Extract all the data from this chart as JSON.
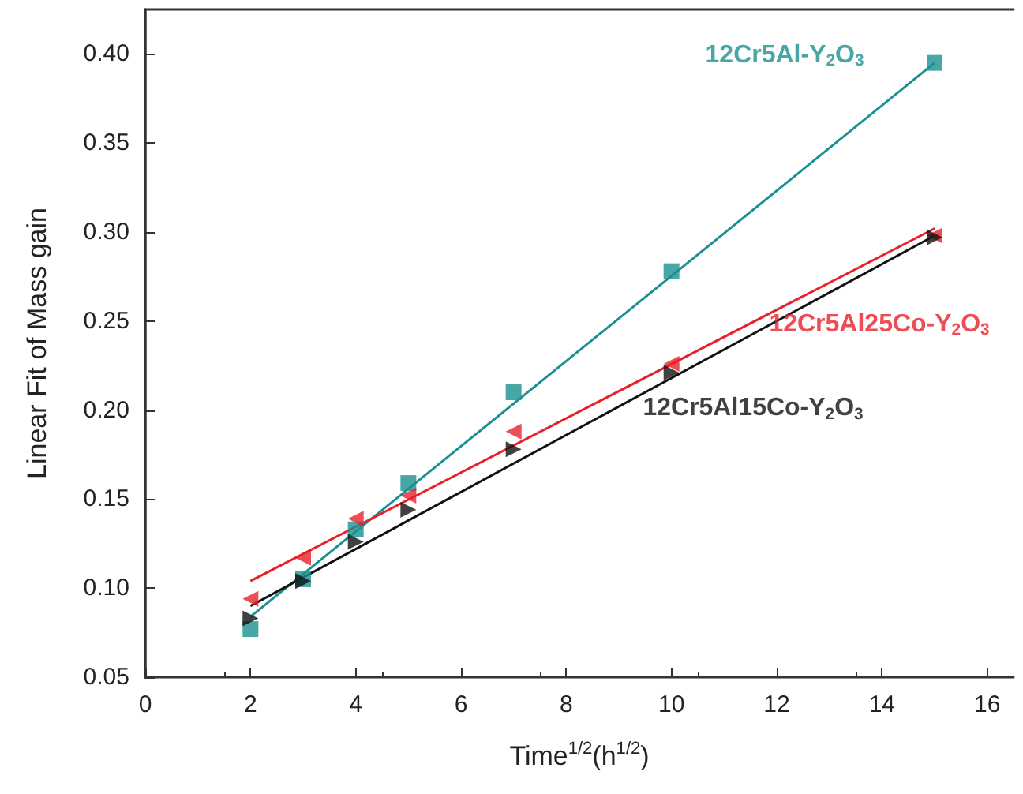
{
  "chart_data": {
    "type": "scatter",
    "xlabel": "Time$^{1/2}$(h$^{1/2}$)",
    "ylabel": "Linear Fit of Mass gain",
    "xlim": [
      0,
      16.5
    ],
    "xticks": [
      0,
      2,
      4,
      6,
      8,
      10,
      12,
      14,
      16
    ],
    "ylim": [
      0.05,
      0.425
    ],
    "yticks": [
      0.05,
      {
        "value": 0.1,
        "label": "0.10"
      },
      0.15,
      {
        "value": 0.2,
        "label": "0.20"
      },
      0.25,
      {
        "value": 0.3,
        "label": "0.30"
      },
      0.35,
      {
        "value": 0.4,
        "label": "0.40"
      }
    ],
    "grid": false,
    "legend": false,
    "series": [
      {
        "name": "12Cr5Al-Y$_{2}$O$_{3}$",
        "marker": "square",
        "color": "#1a9090",
        "x": [
          2,
          3,
          4,
          5,
          7,
          10,
          15
        ],
        "values": [
          0.077,
          0.105,
          0.133,
          0.159,
          0.21,
          0.278,
          0.395
        ]
      },
      {
        "name": "12Cr5Al25Co-Y$_{2}$O$_{3}$",
        "marker": "triangle",
        "color": "#e8202a",
        "x": [
          2,
          3,
          4,
          5,
          7,
          10,
          15
        ],
        "values": [
          0.094,
          0.117,
          0.139,
          0.152,
          0.188,
          0.226,
          0.298
        ]
      },
      {
        "name": "12Cr5Al15Co-Y$_{2}$O$_{3}$",
        "marker": "triangle",
        "color": "#111111",
        "x": [
          2,
          3,
          4,
          5,
          7,
          10,
          15
        ],
        "values": [
          0.083,
          0.104,
          0.126,
          0.144,
          0.178,
          0.221,
          0.297
        ]
      },
      {
        "type": "line",
        "marker": "none",
        "color": "#1a9090",
        "x": [
          2,
          15
        ],
        "values": [
          0.084,
          0.395
        ]
      },
      {
        "type": "line",
        "marker": "none",
        "color": "#e8202a",
        "x": [
          2,
          15
        ],
        "values": [
          0.104,
          0.302
        ]
      },
      {
        "type": "line",
        "marker": "none",
        "color": "#111111",
        "x": [
          2,
          15
        ],
        "values": [
          0.09,
          0.298
        ]
      }
    ]
  }
}
